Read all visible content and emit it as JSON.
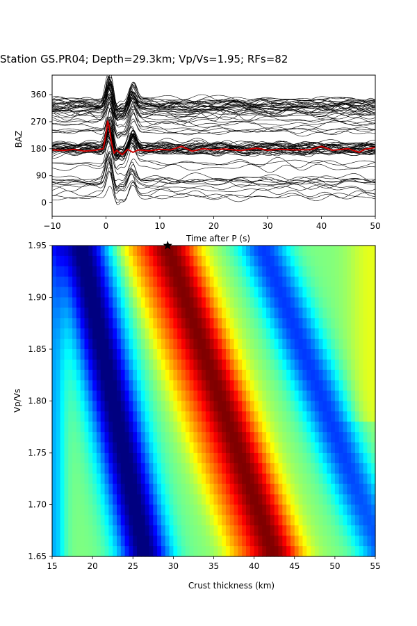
{
  "title": "Station GS.PR04; Depth=29.3km; Vp/Vs=1.95; RFs=82",
  "chart_data": [
    {
      "type": "line",
      "xlabel": "Time after P (s)",
      "ylabel": "BAZ",
      "xlim": [
        -10,
        50
      ],
      "ylim": [
        -45,
        425
      ],
      "xticks": [
        "−10",
        "0",
        "10",
        "20",
        "30",
        "40",
        "50"
      ],
      "yticks": [
        "0",
        "90",
        "180",
        "270",
        "360"
      ],
      "trace_count": 82,
      "trace_color": "#000000",
      "stack_color": "#cc0000",
      "stack_series": {
        "name": "",
        "x": [
          -10,
          -8,
          -6,
          -4,
          -2,
          -0.5,
          0,
          0.3,
          0.6,
          1,
          1.5,
          2,
          3,
          4,
          5,
          6,
          8,
          10,
          12,
          14,
          16,
          18,
          20,
          22,
          25,
          28,
          30,
          32,
          35,
          38,
          40,
          42,
          45,
          47,
          48,
          50
        ],
        "y": [
          176,
          174,
          178,
          172,
          175,
          180,
          230,
          272,
          255,
          200,
          165,
          175,
          160,
          178,
          168,
          176,
          173,
          178,
          176,
          188,
          172,
          180,
          176,
          179,
          174,
          182,
          175,
          178,
          176,
          177,
          188,
          175,
          180,
          168,
          178,
          184
        ]
      }
    },
    {
      "type": "heatmap",
      "xlabel": "Crust thickness (km)",
      "ylabel": "Vp/Vs",
      "xlim": [
        15,
        55
      ],
      "ylim": [
        1.65,
        1.95
      ],
      "xticks": [
        "15",
        "20",
        "25",
        "30",
        "35",
        "40",
        "45",
        "50",
        "55"
      ],
      "yticks": [
        "1.65",
        "1.70",
        "1.75",
        "1.80",
        "1.85",
        "1.90",
        "1.95"
      ],
      "colormap": "jet",
      "marker": {
        "symbol": "star",
        "x": 29.3,
        "y": 1.95
      },
      "bands": [
        {
          "level": "low",
          "x_at_top": 18.6,
          "x_at_bottom": 26.5
        },
        {
          "level": "high",
          "x_at_top": 29.3,
          "x_at_bottom": 42.5
        },
        {
          "level": "low",
          "x_at_top": 41.0,
          "x_at_bottom": 56.0
        }
      ]
    }
  ]
}
